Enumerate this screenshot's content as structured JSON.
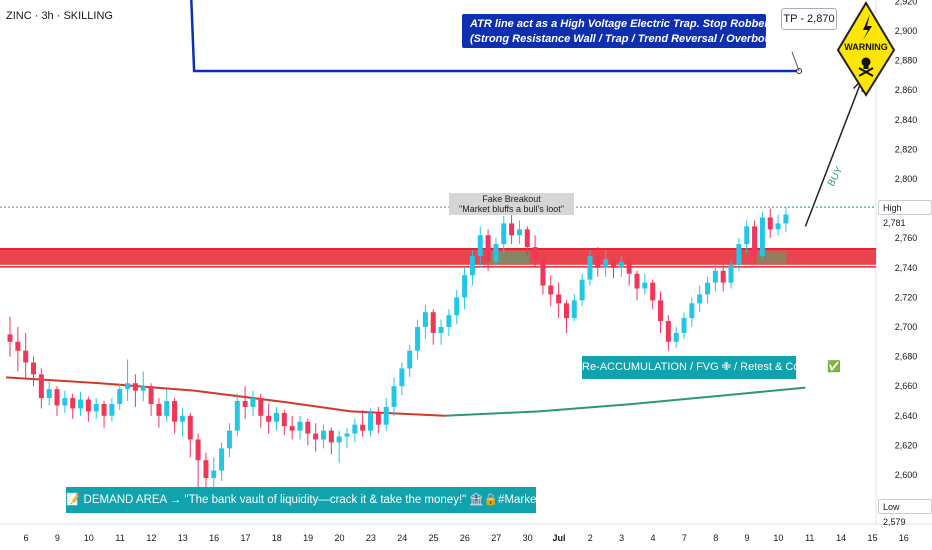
{
  "header": {
    "symbol_line": "ZINC · 3h · SKILLING"
  },
  "annotations": {
    "atr_line1": "ATR line act as a High Voltage Electric Trap. Stop Robbery Plan",
    "atr_line2": "(Strong Resistance Wall / Trap / Trend Reversal / Overbought)",
    "tp_label": "TP - 2,870",
    "warning_text": "WARNING",
    "fake_title": "Fake Breakout",
    "fake_sub": "\"Market bluffs a bull's loot\"",
    "reacc": "Re-ACCUMULATION / FVG ✙ / Retest & Confirm ✅",
    "demand": "📝 DEMAND AREA → \"The bank vault of liquidity—crack it & take the money!\" 🏦🔒#MarketHeist",
    "buy_label": "BUY"
  },
  "price_labels": {
    "high_label": "High",
    "high_value": "2,781",
    "low_label": "Low",
    "low_value": "2,579"
  },
  "colors": {
    "up": "#22c7e6",
    "down": "#f23659",
    "atr_line": "#0d2fb0",
    "ma_red": "#d13a2a",
    "ma_green": "#2e9a6a",
    "resistance": "#e8232f",
    "accent_box": "#10a2ad",
    "warning_yellow": "#ffe600"
  },
  "chart_data": {
    "type": "candlestick",
    "title": "",
    "symbol": "ZINC",
    "timeframe": "3h",
    "broker": "SKILLING",
    "y_axis": {
      "ylim": [
        2570,
        2920
      ],
      "ticks": [
        2600,
        2620,
        2640,
        2660,
        2680,
        2700,
        2720,
        2740,
        2760,
        2780,
        2800,
        2820,
        2840,
        2860,
        2880,
        2900,
        2920
      ],
      "tick_labels": [
        "2,600",
        "2,620",
        "2,640",
        "2,660",
        "2,680",
        "2,700",
        "2,720",
        "2,740",
        "2,760",
        "2,780",
        "2,800",
        "2,820",
        "2,840",
        "2,860",
        "2,880",
        "2,900",
        "2,920"
      ]
    },
    "x_axis": {
      "tick_labels": [
        "6",
        "9",
        "10",
        "11",
        "12",
        "13",
        "16",
        "17",
        "18",
        "19",
        "20",
        "23",
        "24",
        "25",
        "26",
        "27",
        "30",
        "Jul",
        "2",
        "3",
        "4",
        "7",
        "8",
        "9",
        "10",
        "11",
        "14",
        "15",
        "16"
      ]
    },
    "high": 2781,
    "low": 2579,
    "take_profit": 2870,
    "resistance_zone": [
      2742,
      2752
    ],
    "atr_line": [
      {
        "x": 0.0,
        "y": 2957
      },
      {
        "x": 4.7,
        "y": 2957
      },
      {
        "x": 5.0,
        "y": 2940
      },
      {
        "x": 5.9,
        "y": 2927
      },
      {
        "x": 6.0,
        "y": 2873
      },
      {
        "x": 25.3,
        "y": 2873
      }
    ],
    "moving_average": [
      {
        "x": 0.0,
        "y": 2666
      },
      {
        "x": 3.0,
        "y": 2662
      },
      {
        "x": 6.0,
        "y": 2657
      },
      {
        "x": 9.0,
        "y": 2649
      },
      {
        "x": 11.0,
        "y": 2643
      },
      {
        "x": 14.0,
        "y": 2640
      },
      {
        "x": 17.0,
        "y": 2643
      },
      {
        "x": 20.0,
        "y": 2648
      },
      {
        "x": 23.0,
        "y": 2654
      },
      {
        "x": 25.5,
        "y": 2659
      }
    ],
    "ma_color_change_x": 14.3,
    "buy_arrow": {
      "from": {
        "x": 25.5,
        "y": 2768
      },
      "to": {
        "x": 27.3,
        "y": 2867
      }
    },
    "ohlc": [
      {
        "x": 0.0,
        "o": 2695,
        "h": 2707,
        "c": 2690,
        "l": 2680
      },
      {
        "x": 0.25,
        "o": 2690,
        "h": 2700,
        "c": 2684,
        "l": 2670
      },
      {
        "x": 0.5,
        "o": 2684,
        "h": 2696,
        "c": 2676,
        "l": 2665
      },
      {
        "x": 0.75,
        "o": 2676,
        "h": 2680,
        "c": 2668,
        "l": 2660
      },
      {
        "x": 1.0,
        "o": 2668,
        "h": 2672,
        "c": 2652,
        "l": 2645
      },
      {
        "x": 1.25,
        "o": 2652,
        "h": 2663,
        "c": 2658,
        "l": 2647
      },
      {
        "x": 1.5,
        "o": 2658,
        "h": 2660,
        "c": 2647,
        "l": 2640
      },
      {
        "x": 1.75,
        "o": 2647,
        "h": 2657,
        "c": 2652,
        "l": 2642
      },
      {
        "x": 2.0,
        "o": 2652,
        "h": 2655,
        "c": 2645,
        "l": 2638
      },
      {
        "x": 2.25,
        "o": 2645,
        "h": 2656,
        "c": 2651,
        "l": 2640
      },
      {
        "x": 2.5,
        "o": 2651,
        "h": 2653,
        "c": 2643,
        "l": 2636
      },
      {
        "x": 2.75,
        "o": 2643,
        "h": 2652,
        "c": 2648,
        "l": 2638
      },
      {
        "x": 3.0,
        "o": 2648,
        "h": 2650,
        "c": 2640,
        "l": 2632
      },
      {
        "x": 3.25,
        "o": 2640,
        "h": 2652,
        "c": 2648,
        "l": 2636
      },
      {
        "x": 3.5,
        "o": 2648,
        "h": 2662,
        "c": 2658,
        "l": 2644
      },
      {
        "x": 3.75,
        "o": 2658,
        "h": 2678,
        "c": 2662,
        "l": 2650
      },
      {
        "x": 4.0,
        "o": 2662,
        "h": 2668,
        "c": 2657,
        "l": 2646
      },
      {
        "x": 4.25,
        "o": 2657,
        "h": 2670,
        "c": 2660,
        "l": 2650
      },
      {
        "x": 4.5,
        "o": 2660,
        "h": 2662,
        "c": 2648,
        "l": 2640
      },
      {
        "x": 4.75,
        "o": 2648,
        "h": 2652,
        "c": 2640,
        "l": 2632
      },
      {
        "x": 5.0,
        "o": 2640,
        "h": 2658,
        "c": 2650,
        "l": 2636
      },
      {
        "x": 5.25,
        "o": 2650,
        "h": 2652,
        "c": 2636,
        "l": 2628
      },
      {
        "x": 5.5,
        "o": 2636,
        "h": 2645,
        "c": 2640,
        "l": 2626
      },
      {
        "x": 5.75,
        "o": 2640,
        "h": 2642,
        "c": 2624,
        "l": 2612
      },
      {
        "x": 6.0,
        "o": 2624,
        "h": 2628,
        "c": 2610,
        "l": 2590
      },
      {
        "x": 6.25,
        "o": 2610,
        "h": 2615,
        "c": 2598,
        "l": 2580
      },
      {
        "x": 6.5,
        "o": 2598,
        "h": 2612,
        "c": 2603,
        "l": 2584
      },
      {
        "x": 6.75,
        "o": 2603,
        "h": 2622,
        "c": 2618,
        "l": 2596
      },
      {
        "x": 7.0,
        "o": 2618,
        "h": 2635,
        "c": 2630,
        "l": 2612
      },
      {
        "x": 7.25,
        "o": 2630,
        "h": 2655,
        "c": 2650,
        "l": 2626
      },
      {
        "x": 7.5,
        "o": 2650,
        "h": 2660,
        "c": 2646,
        "l": 2638
      },
      {
        "x": 7.75,
        "o": 2646,
        "h": 2657,
        "c": 2652,
        "l": 2640
      },
      {
        "x": 8.0,
        "o": 2652,
        "h": 2655,
        "c": 2640,
        "l": 2632
      },
      {
        "x": 8.25,
        "o": 2640,
        "h": 2648,
        "c": 2636,
        "l": 2628
      },
      {
        "x": 8.5,
        "o": 2636,
        "h": 2646,
        "c": 2642,
        "l": 2630
      },
      {
        "x": 8.75,
        "o": 2642,
        "h": 2644,
        "c": 2633,
        "l": 2627
      },
      {
        "x": 9.0,
        "o": 2633,
        "h": 2640,
        "c": 2630,
        "l": 2624
      },
      {
        "x": 9.25,
        "o": 2630,
        "h": 2640,
        "c": 2636,
        "l": 2624
      },
      {
        "x": 9.5,
        "o": 2636,
        "h": 2638,
        "c": 2628,
        "l": 2620
      },
      {
        "x": 9.75,
        "o": 2628,
        "h": 2635,
        "c": 2624,
        "l": 2616
      },
      {
        "x": 10.0,
        "o": 2624,
        "h": 2634,
        "c": 2630,
        "l": 2618
      },
      {
        "x": 10.25,
        "o": 2630,
        "h": 2632,
        "c": 2622,
        "l": 2614
      },
      {
        "x": 10.5,
        "o": 2622,
        "h": 2630,
        "c": 2626,
        "l": 2608
      },
      {
        "x": 10.75,
        "o": 2626,
        "h": 2632,
        "c": 2628,
        "l": 2618
      },
      {
        "x": 11.0,
        "o": 2628,
        "h": 2638,
        "c": 2634,
        "l": 2622
      },
      {
        "x": 11.25,
        "o": 2634,
        "h": 2644,
        "c": 2630,
        "l": 2626
      },
      {
        "x": 11.5,
        "o": 2630,
        "h": 2645,
        "c": 2642,
        "l": 2626
      },
      {
        "x": 11.75,
        "o": 2642,
        "h": 2646,
        "c": 2634,
        "l": 2628
      },
      {
        "x": 12.0,
        "o": 2634,
        "h": 2652,
        "c": 2646,
        "l": 2630
      },
      {
        "x": 12.25,
        "o": 2646,
        "h": 2666,
        "c": 2660,
        "l": 2640
      },
      {
        "x": 12.5,
        "o": 2660,
        "h": 2676,
        "c": 2672,
        "l": 2654
      },
      {
        "x": 12.75,
        "o": 2672,
        "h": 2688,
        "c": 2684,
        "l": 2666
      },
      {
        "x": 13.0,
        "o": 2684,
        "h": 2705,
        "c": 2700,
        "l": 2678
      },
      {
        "x": 13.25,
        "o": 2700,
        "h": 2715,
        "c": 2710,
        "l": 2692
      },
      {
        "x": 13.5,
        "o": 2710,
        "h": 2712,
        "c": 2696,
        "l": 2688
      },
      {
        "x": 13.75,
        "o": 2696,
        "h": 2705,
        "c": 2700,
        "l": 2688
      },
      {
        "x": 14.0,
        "o": 2700,
        "h": 2712,
        "c": 2708,
        "l": 2694
      },
      {
        "x": 14.25,
        "o": 2708,
        "h": 2725,
        "c": 2720,
        "l": 2702
      },
      {
        "x": 14.5,
        "o": 2720,
        "h": 2740,
        "c": 2735,
        "l": 2712
      },
      {
        "x": 14.75,
        "o": 2735,
        "h": 2752,
        "c": 2748,
        "l": 2728
      },
      {
        "x": 15.0,
        "o": 2748,
        "h": 2768,
        "c": 2762,
        "l": 2740
      },
      {
        "x": 15.25,
        "o": 2762,
        "h": 2766,
        "c": 2744,
        "l": 2738
      },
      {
        "x": 15.5,
        "o": 2744,
        "h": 2760,
        "c": 2756,
        "l": 2740
      },
      {
        "x": 15.75,
        "o": 2756,
        "h": 2775,
        "c": 2770,
        "l": 2750
      },
      {
        "x": 16.0,
        "o": 2770,
        "h": 2778,
        "c": 2762,
        "l": 2756
      },
      {
        "x": 16.25,
        "o": 2762,
        "h": 2772,
        "c": 2766,
        "l": 2756
      },
      {
        "x": 16.5,
        "o": 2766,
        "h": 2768,
        "c": 2754,
        "l": 2748
      },
      {
        "x": 16.75,
        "o": 2754,
        "h": 2762,
        "c": 2746,
        "l": 2740
      },
      {
        "x": 17.0,
        "o": 2746,
        "h": 2750,
        "c": 2728,
        "l": 2722
      },
      {
        "x": 17.25,
        "o": 2728,
        "h": 2735,
        "c": 2722,
        "l": 2714
      },
      {
        "x": 17.5,
        "o": 2722,
        "h": 2730,
        "c": 2716,
        "l": 2706
      },
      {
        "x": 17.75,
        "o": 2716,
        "h": 2718,
        "c": 2706,
        "l": 2696
      },
      {
        "x": 18.0,
        "o": 2706,
        "h": 2722,
        "c": 2718,
        "l": 2704
      },
      {
        "x": 18.25,
        "o": 2718,
        "h": 2736,
        "c": 2732,
        "l": 2714
      },
      {
        "x": 18.5,
        "o": 2732,
        "h": 2752,
        "c": 2748,
        "l": 2728
      },
      {
        "x": 18.75,
        "o": 2748,
        "h": 2754,
        "c": 2740,
        "l": 2734
      },
      {
        "x": 19.0,
        "o": 2740,
        "h": 2752,
        "c": 2746,
        "l": 2734
      },
      {
        "x": 19.25,
        "o": 2746,
        "h": 2750,
        "c": 2740,
        "l": 2733
      },
      {
        "x": 19.5,
        "o": 2740,
        "h": 2748,
        "c": 2744,
        "l": 2734
      },
      {
        "x": 19.75,
        "o": 2744,
        "h": 2748,
        "c": 2736,
        "l": 2728
      },
      {
        "x": 20.0,
        "o": 2736,
        "h": 2738,
        "c": 2726,
        "l": 2718
      },
      {
        "x": 20.25,
        "o": 2726,
        "h": 2736,
        "c": 2730,
        "l": 2722
      },
      {
        "x": 20.5,
        "o": 2730,
        "h": 2732,
        "c": 2718,
        "l": 2712
      },
      {
        "x": 20.75,
        "o": 2718,
        "h": 2724,
        "c": 2704,
        "l": 2696
      },
      {
        "x": 21.0,
        "o": 2704,
        "h": 2708,
        "c": 2690,
        "l": 2684
      },
      {
        "x": 21.25,
        "o": 2690,
        "h": 2700,
        "c": 2696,
        "l": 2686
      },
      {
        "x": 21.5,
        "o": 2696,
        "h": 2710,
        "c": 2706,
        "l": 2692
      },
      {
        "x": 21.75,
        "o": 2706,
        "h": 2720,
        "c": 2716,
        "l": 2700
      },
      {
        "x": 22.0,
        "o": 2716,
        "h": 2728,
        "c": 2722,
        "l": 2710
      },
      {
        "x": 22.25,
        "o": 2722,
        "h": 2734,
        "c": 2730,
        "l": 2716
      },
      {
        "x": 22.5,
        "o": 2730,
        "h": 2742,
        "c": 2738,
        "l": 2724
      },
      {
        "x": 22.75,
        "o": 2738,
        "h": 2744,
        "c": 2730,
        "l": 2724
      },
      {
        "x": 23.0,
        "o": 2730,
        "h": 2745,
        "c": 2742,
        "l": 2726
      },
      {
        "x": 23.25,
        "o": 2742,
        "h": 2760,
        "c": 2756,
        "l": 2738
      },
      {
        "x": 23.5,
        "o": 2756,
        "h": 2772,
        "c": 2768,
        "l": 2750
      },
      {
        "x": 23.75,
        "o": 2768,
        "h": 2772,
        "c": 2748,
        "l": 2744
      },
      {
        "x": 24.0,
        "o": 2748,
        "h": 2778,
        "c": 2774,
        "l": 2746
      },
      {
        "x": 24.25,
        "o": 2774,
        "h": 2780,
        "c": 2766,
        "l": 2760
      },
      {
        "x": 24.5,
        "o": 2766,
        "h": 2776,
        "c": 2770,
        "l": 2762
      },
      {
        "x": 24.75,
        "o": 2770,
        "h": 2781,
        "c": 2776,
        "l": 2764
      }
    ]
  }
}
